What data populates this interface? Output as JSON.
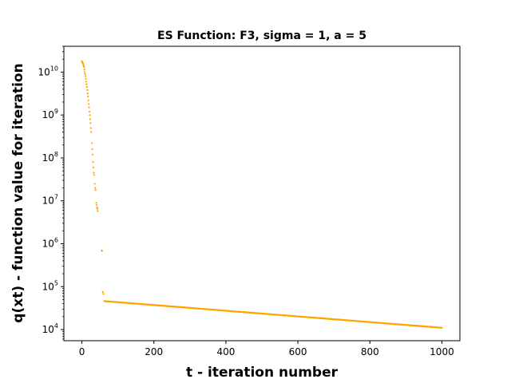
{
  "chart_data": {
    "type": "scatter",
    "title": "ES Function: F3, sigma = 1, a = 5",
    "xlabel": "t - iteration number",
    "ylabel": "q(xt) - function value for iteration",
    "xlim": [
      -50,
      1050
    ],
    "ylim": [
      5500,
      40000000000
    ],
    "yscale": "log",
    "xticks": [
      0,
      200,
      400,
      600,
      800,
      1000
    ],
    "yticks": [
      {
        "value": 10000,
        "base": "10",
        "exp": "4"
      },
      {
        "value": 100000,
        "base": "10",
        "exp": "5"
      },
      {
        "value": 1000000,
        "base": "10",
        "exp": "6"
      },
      {
        "value": 10000000,
        "base": "10",
        "exp": "7"
      },
      {
        "value": 100000000,
        "base": "10",
        "exp": "8"
      },
      {
        "value": 1000000000,
        "base": "10",
        "exp": "9"
      },
      {
        "value": 10000000000,
        "base": "10",
        "exp": "10"
      }
    ],
    "grid": false,
    "marker_color": "#ffa500",
    "series": [
      {
        "points": [
          [
            0,
            18000000000.0
          ],
          [
            1,
            17000000000.0
          ],
          [
            2,
            16500000000.0
          ],
          [
            3,
            16000000000.0
          ],
          [
            4,
            15000000000.0
          ],
          [
            5,
            14000000000.0
          ],
          [
            6,
            13000000000.0
          ],
          [
            7,
            11500000000.0
          ],
          [
            8,
            10000000000.0
          ],
          [
            9,
            9000000000.0
          ],
          [
            10,
            8000000000.0
          ],
          [
            11,
            7000000000.0
          ],
          [
            12,
            6000000000.0
          ],
          [
            13,
            5200000000.0
          ],
          [
            14,
            4500000000.0
          ],
          [
            15,
            3800000000.0
          ],
          [
            16,
            3200000000.0
          ],
          [
            17,
            2700000000.0
          ],
          [
            18,
            2200000000.0
          ],
          [
            19,
            1800000000.0
          ],
          [
            20,
            1500000000.0
          ],
          [
            21,
            1200000000.0
          ],
          [
            22,
            1000000000.0
          ],
          [
            23,
            800000000.0
          ],
          [
            24,
            650000000.0
          ],
          [
            25,
            500000000.0
          ],
          [
            26,
            400000000.0
          ],
          [
            28,
            220000000.0
          ],
          [
            29,
            160000000.0
          ],
          [
            30,
            120000000.0
          ],
          [
            31,
            80000000.0
          ],
          [
            32,
            60000000.0
          ],
          [
            33,
            45000000.0
          ],
          [
            34,
            40000000.0
          ],
          [
            36,
            25000000.0
          ],
          [
            37,
            20000000.0
          ],
          [
            38,
            18000000.0
          ],
          [
            40,
            9000000.0
          ],
          [
            41,
            8000000.0
          ],
          [
            42,
            7000000.0
          ],
          [
            43,
            6500000.0
          ],
          [
            44,
            5800000.0
          ],
          [
            55,
            700000.0
          ],
          [
            56,
            680000.0
          ],
          [
            58,
            75000.0
          ],
          [
            60,
            68000.0
          ]
        ]
      }
    ],
    "tail": {
      "x_start": 62,
      "x_end": 1000,
      "y_start": 46000,
      "y_end": 11000
    }
  }
}
